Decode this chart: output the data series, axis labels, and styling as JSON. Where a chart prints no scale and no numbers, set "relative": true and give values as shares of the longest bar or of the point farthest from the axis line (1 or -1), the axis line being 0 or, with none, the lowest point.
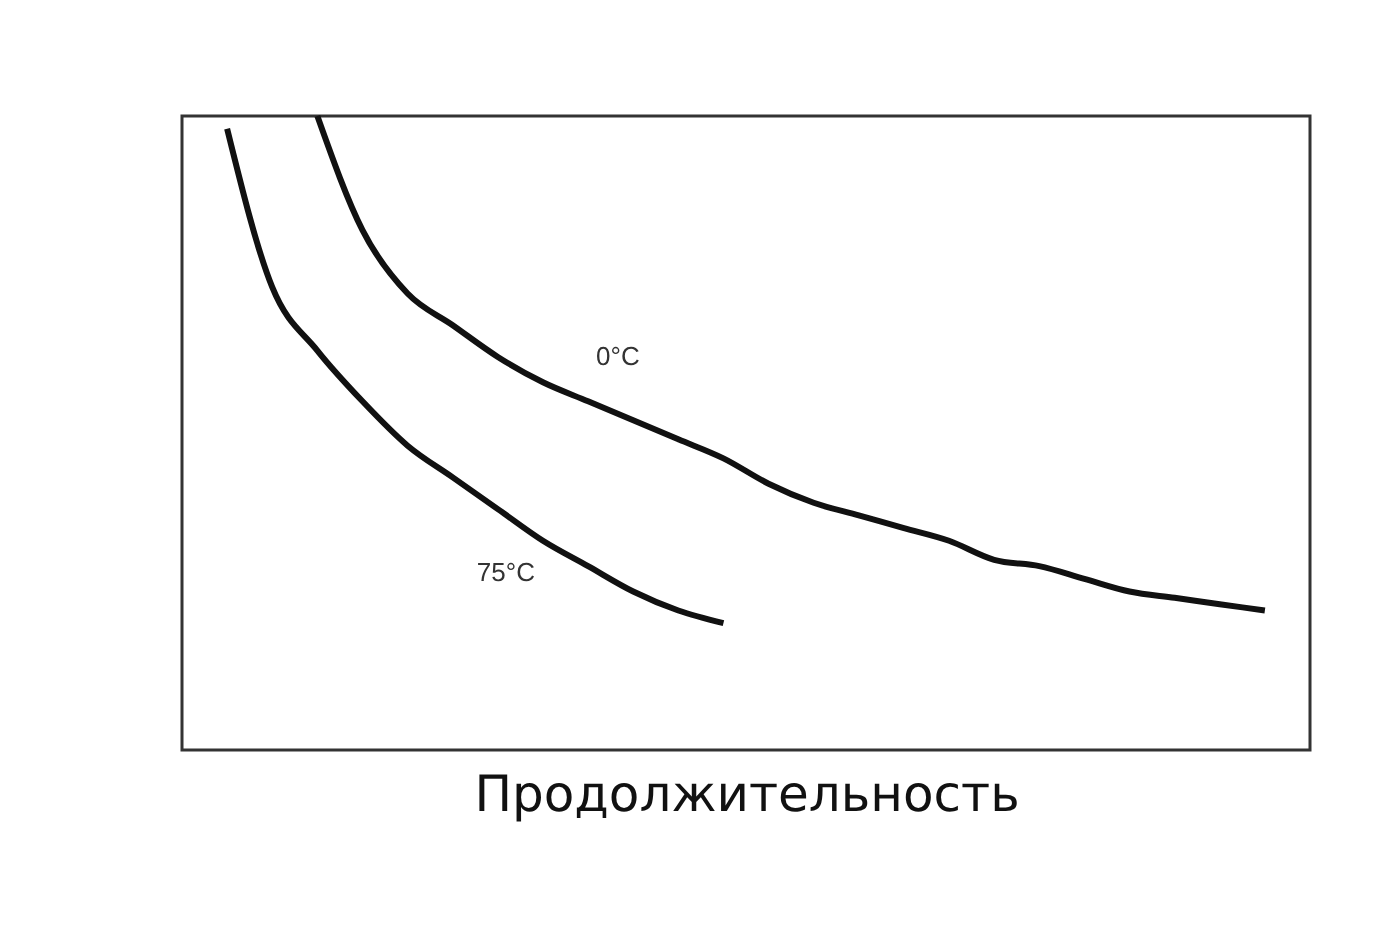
{
  "chart_data": {
    "type": "line",
    "xlabel": "Продолжительность",
    "relative": true,
    "tick_labels": false,
    "legend": false,
    "marker": "none",
    "line_style": "solid",
    "categories": [
      null,
      null,
      null,
      null,
      null,
      null,
      null,
      null,
      null,
      null,
      null,
      null,
      null,
      null,
      null,
      null,
      null,
      null,
      null,
      null,
      null,
      null,
      null,
      null,
      null,
      null
    ],
    "series": [
      {
        "name": "0°C",
        "color": "#111111",
        "values": [
          null,
          null,
          null,
          1.0,
          0.82,
          0.72,
          0.67,
          0.62,
          0.58,
          0.55,
          0.52,
          0.49,
          0.46,
          0.42,
          0.39,
          0.37,
          0.35,
          0.33,
          0.3,
          0.29,
          0.27,
          0.25,
          0.24,
          0.23,
          0.22,
          null
        ]
      },
      {
        "name": "75°C",
        "color": "#111111",
        "values": [
          null,
          0.98,
          0.73,
          0.63,
          0.55,
          0.48,
          0.43,
          0.38,
          0.33,
          0.29,
          0.25,
          0.22,
          0.2,
          null,
          null,
          null,
          null,
          null,
          null,
          null,
          null,
          null,
          null,
          null,
          null,
          null
        ]
      }
    ]
  }
}
